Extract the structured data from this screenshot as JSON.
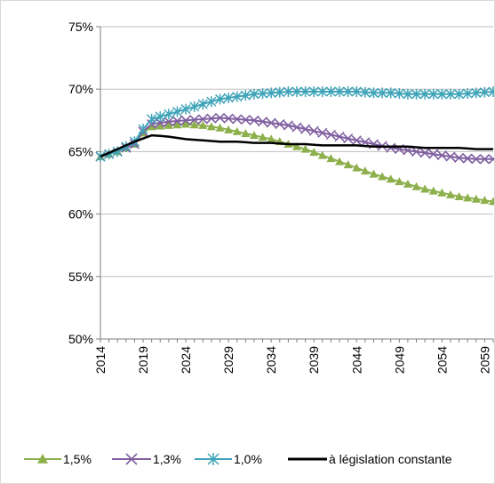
{
  "chart_data": {
    "type": "line",
    "title": "",
    "xlabel": "",
    "ylabel": "",
    "x_range": [
      2014,
      2060
    ],
    "ylim": [
      50,
      75
    ],
    "y_ticks": [
      50,
      55,
      60,
      65,
      70,
      75
    ],
    "y_tick_labels": [
      "50%",
      "55%",
      "60%",
      "65%",
      "70%",
      "75%"
    ],
    "x_ticks": [
      2014,
      2019,
      2024,
      2029,
      2034,
      2039,
      2044,
      2049,
      2054,
      2059
    ],
    "x_tick_labels": [
      "2014",
      "2019",
      "2024",
      "2029",
      "2034",
      "2039",
      "2044",
      "2049",
      "2054",
      "2059"
    ],
    "grid": "horizontal",
    "legend_position": "bottom",
    "series": [
      {
        "name": "1,5%",
        "color": "#8db04c",
        "marker": "triangle",
        "points": [
          [
            2014,
            64.6
          ],
          [
            2016,
            65.0
          ],
          [
            2018,
            65.6
          ],
          [
            2019,
            66.5
          ],
          [
            2020,
            67.0
          ],
          [
            2022,
            67.1
          ],
          [
            2024,
            67.2
          ],
          [
            2026,
            67.1
          ],
          [
            2028,
            66.9
          ],
          [
            2030,
            66.6
          ],
          [
            2032,
            66.3
          ],
          [
            2034,
            66.0
          ],
          [
            2036,
            65.6
          ],
          [
            2038,
            65.2
          ],
          [
            2040,
            64.7
          ],
          [
            2042,
            64.2
          ],
          [
            2044,
            63.7
          ],
          [
            2046,
            63.2
          ],
          [
            2048,
            62.8
          ],
          [
            2050,
            62.4
          ],
          [
            2052,
            62.0
          ],
          [
            2054,
            61.7
          ],
          [
            2056,
            61.4
          ],
          [
            2058,
            61.2
          ],
          [
            2060,
            61.0
          ]
        ]
      },
      {
        "name": "1,3%",
        "color": "#7f5fa0",
        "marker": "x",
        "points": [
          [
            2014,
            64.6
          ],
          [
            2016,
            65.0
          ],
          [
            2018,
            65.6
          ],
          [
            2019,
            66.6
          ],
          [
            2020,
            67.2
          ],
          [
            2022,
            67.4
          ],
          [
            2024,
            67.5
          ],
          [
            2026,
            67.6
          ],
          [
            2028,
            67.7
          ],
          [
            2030,
            67.6
          ],
          [
            2032,
            67.5
          ],
          [
            2034,
            67.3
          ],
          [
            2036,
            67.1
          ],
          [
            2038,
            66.8
          ],
          [
            2040,
            66.5
          ],
          [
            2042,
            66.2
          ],
          [
            2044,
            65.9
          ],
          [
            2046,
            65.6
          ],
          [
            2048,
            65.3
          ],
          [
            2050,
            65.1
          ],
          [
            2052,
            64.9
          ],
          [
            2054,
            64.7
          ],
          [
            2056,
            64.5
          ],
          [
            2058,
            64.4
          ],
          [
            2060,
            64.4
          ]
        ]
      },
      {
        "name": "1,0%",
        "color": "#3fa4b9",
        "marker": "star",
        "points": [
          [
            2014,
            64.6
          ],
          [
            2016,
            65.0
          ],
          [
            2018,
            65.8
          ],
          [
            2019,
            66.8
          ],
          [
            2020,
            67.6
          ],
          [
            2022,
            68.0
          ],
          [
            2024,
            68.4
          ],
          [
            2026,
            68.8
          ],
          [
            2028,
            69.2
          ],
          [
            2030,
            69.4
          ],
          [
            2032,
            69.6
          ],
          [
            2034,
            69.7
          ],
          [
            2036,
            69.8
          ],
          [
            2038,
            69.8
          ],
          [
            2040,
            69.8
          ],
          [
            2042,
            69.8
          ],
          [
            2044,
            69.8
          ],
          [
            2046,
            69.7
          ],
          [
            2048,
            69.7
          ],
          [
            2050,
            69.6
          ],
          [
            2052,
            69.6
          ],
          [
            2054,
            69.6
          ],
          [
            2056,
            69.6
          ],
          [
            2058,
            69.7
          ],
          [
            2060,
            69.8
          ]
        ]
      },
      {
        "name": "à législation constante",
        "color": "#000000",
        "marker": "none",
        "points": [
          [
            2014,
            64.6
          ],
          [
            2016,
            65.2
          ],
          [
            2018,
            65.8
          ],
          [
            2020,
            66.3
          ],
          [
            2022,
            66.2
          ],
          [
            2024,
            66.0
          ],
          [
            2026,
            65.9
          ],
          [
            2028,
            65.8
          ],
          [
            2030,
            65.8
          ],
          [
            2032,
            65.7
          ],
          [
            2034,
            65.7
          ],
          [
            2036,
            65.6
          ],
          [
            2038,
            65.6
          ],
          [
            2040,
            65.5
          ],
          [
            2042,
            65.5
          ],
          [
            2044,
            65.5
          ],
          [
            2046,
            65.4
          ],
          [
            2048,
            65.4
          ],
          [
            2050,
            65.4
          ],
          [
            2052,
            65.3
          ],
          [
            2054,
            65.3
          ],
          [
            2056,
            65.3
          ],
          [
            2058,
            65.2
          ],
          [
            2060,
            65.2
          ]
        ]
      }
    ]
  }
}
